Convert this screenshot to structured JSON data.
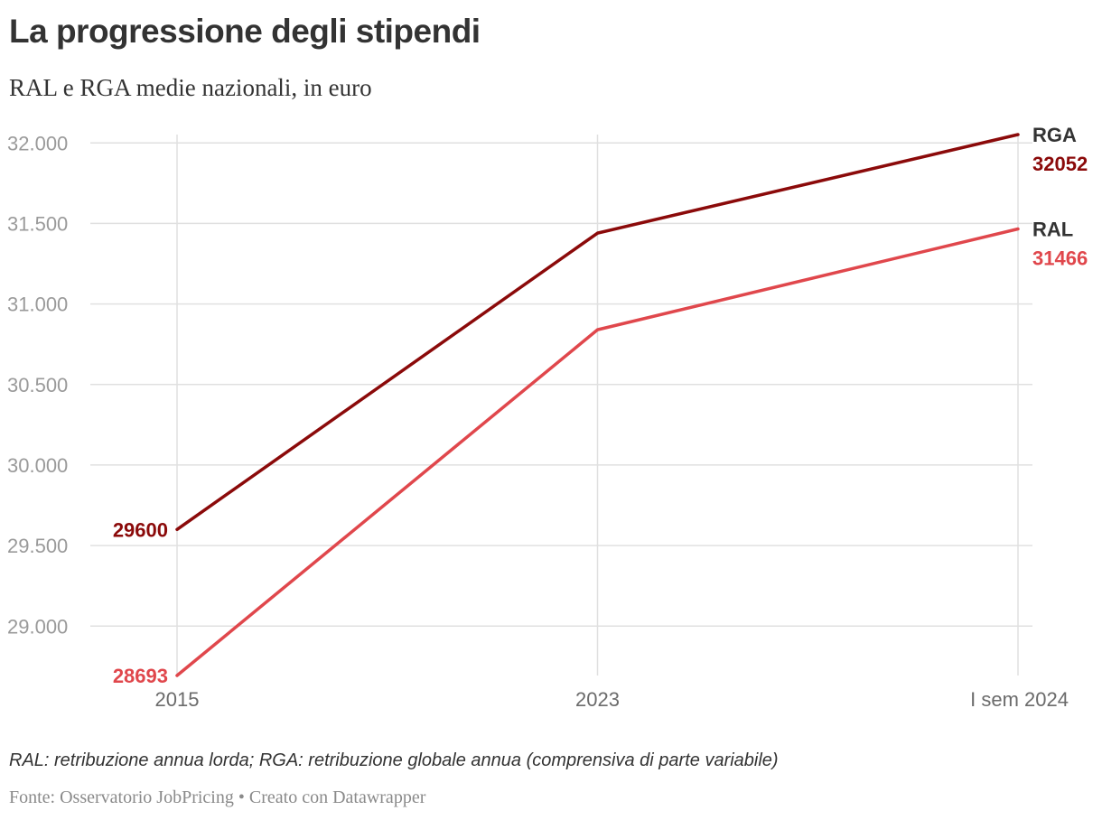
{
  "header": {
    "title": "La progressione degli stipendi",
    "subtitle": "RAL e RGA medie nazionali, in euro"
  },
  "footer": {
    "note": "RAL: retribuzione annua lorda; RGA: retribuzione globale annua (comprensiva di parte variabile)",
    "source": "Fonte: Osservatorio JobPricing",
    "separator": "•",
    "credit": "Creato con Datawrapper"
  },
  "chart_data": {
    "type": "line",
    "title": "La progressione degli stipendi",
    "subtitle": "RAL e RGA medie nazionali, in euro",
    "xlabel": "",
    "ylabel": "",
    "categories": [
      "2015",
      "2023",
      "I sem 2024"
    ],
    "ylim": [
      28693,
      32052
    ],
    "yticks": [
      29000,
      29500,
      30000,
      30500,
      31000,
      31500,
      32000
    ],
    "ytick_labels": [
      "29.000",
      "29.500",
      "30.000",
      "30.500",
      "31.000",
      "31.500",
      "32.000"
    ],
    "grid": true,
    "series": [
      {
        "name": "RGA",
        "values": [
          29600,
          31440,
          32052
        ],
        "color": "#8b0a0a",
        "start_label": "29600",
        "end_label": "32052"
      },
      {
        "name": "RAL",
        "values": [
          28693,
          30840,
          31466
        ],
        "color": "#e0474c",
        "start_label": "28693",
        "end_label": "31466"
      }
    ],
    "colors": {
      "grid": "#e0e0e0",
      "tick_text": "#9a9a9a",
      "series_name": "#333333"
    }
  }
}
